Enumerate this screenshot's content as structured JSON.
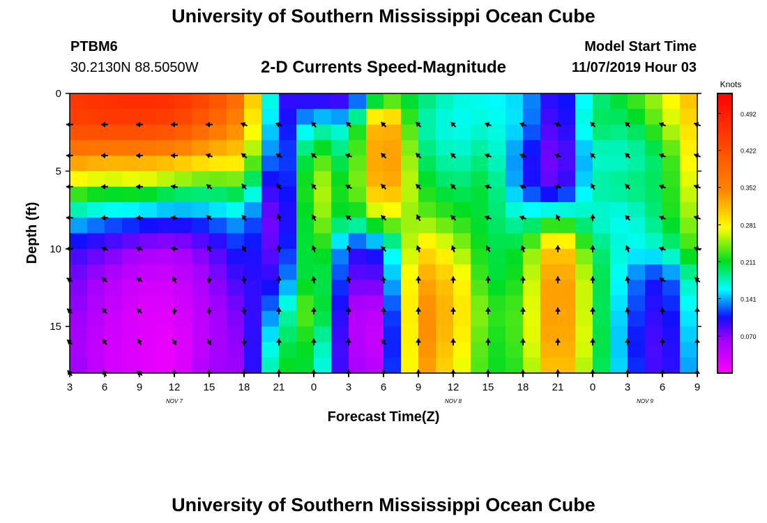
{
  "title": "University of Southern Mississippi Ocean Cube",
  "footer_title": "University of Southern Mississippi Ocean Cube",
  "station": {
    "id": "PTBM6",
    "coords": "30.2130N 88.5050W"
  },
  "chart_title": "2-D Currents Speed-Magnitude",
  "model": {
    "label": "Model Start Time",
    "value": "11/07/2019 Hour 03"
  },
  "chart_data": {
    "type": "heatmap",
    "title": "2-D Currents Speed-Magnitude",
    "xlabel": "Forecast Time(Z)",
    "ylabel": "Depth (ft)",
    "x_hours": [
      3,
      6,
      9,
      12,
      15,
      18,
      21,
      24,
      27,
      30,
      33,
      36,
      39,
      42,
      45,
      48,
      51,
      54,
      57
    ],
    "x_tick_labels": [
      "3",
      "6",
      "9",
      "12",
      "15",
      "18",
      "21",
      "0",
      "3",
      "6",
      "9",
      "12",
      "15",
      "18",
      "21",
      "0",
      "3",
      "6",
      "9"
    ],
    "date_labels": [
      {
        "label": "NOV  7",
        "hour": 12
      },
      {
        "label": "NOV  8",
        "hour": 36
      },
      {
        "label": "NOV  9",
        "hour": 52.5
      }
    ],
    "xlim": [
      3,
      57
    ],
    "ylim": [
      18,
      0
    ],
    "y_ticks": [
      0,
      5,
      10,
      15
    ],
    "colorbar": {
      "unit": "Knots",
      "ticks": [
        "0.492",
        "0.422",
        "0.352",
        "0.281",
        "0.211",
        "0.141",
        "0.070"
      ],
      "tick_values": [
        0.492,
        0.422,
        0.352,
        0.281,
        0.211,
        0.141,
        0.07
      ],
      "range": [
        0.0,
        0.53
      ]
    },
    "depths": [
      0,
      2,
      4,
      6,
      8,
      10,
      12,
      14,
      16,
      18
    ],
    "speed_grid": [
      [
        0.46,
        0.47,
        0.48,
        0.47,
        0.44,
        0.38,
        0.1,
        0.08,
        0.07,
        0.2,
        0.2,
        0.17,
        0.16,
        0.15,
        0.09,
        0.18,
        0.22,
        0.26,
        0.33
      ],
      [
        0.44,
        0.45,
        0.45,
        0.44,
        0.4,
        0.34,
        0.09,
        0.17,
        0.16,
        0.37,
        0.18,
        0.16,
        0.17,
        0.15,
        0.07,
        0.2,
        0.19,
        0.24,
        0.31
      ],
      [
        0.36,
        0.35,
        0.35,
        0.34,
        0.31,
        0.3,
        0.08,
        0.24,
        0.18,
        0.38,
        0.2,
        0.17,
        0.19,
        0.12,
        0.06,
        0.17,
        0.17,
        0.2,
        0.3
      ],
      [
        0.25,
        0.23,
        0.24,
        0.22,
        0.21,
        0.22,
        0.06,
        0.27,
        0.2,
        0.36,
        0.22,
        0.19,
        0.21,
        0.12,
        0.07,
        0.18,
        0.19,
        0.2,
        0.28
      ],
      [
        0.16,
        0.14,
        0.13,
        0.12,
        0.13,
        0.15,
        0.05,
        0.26,
        0.19,
        0.26,
        0.24,
        0.22,
        0.2,
        0.17,
        0.2,
        0.17,
        0.16,
        0.2,
        0.26
      ],
      [
        0.1,
        0.08,
        0.06,
        0.05,
        0.08,
        0.12,
        0.07,
        0.25,
        0.1,
        0.12,
        0.3,
        0.26,
        0.2,
        0.21,
        0.34,
        0.2,
        0.16,
        0.17,
        0.24
      ],
      [
        0.08,
        0.05,
        0.03,
        0.03,
        0.06,
        0.1,
        0.1,
        0.24,
        0.08,
        0.08,
        0.34,
        0.3,
        0.2,
        0.22,
        0.37,
        0.22,
        0.14,
        0.1,
        0.2
      ],
      [
        0.07,
        0.04,
        0.02,
        0.02,
        0.05,
        0.08,
        0.15,
        0.26,
        0.05,
        0.04,
        0.36,
        0.31,
        0.22,
        0.23,
        0.37,
        0.22,
        0.13,
        0.09,
        0.18
      ],
      [
        0.06,
        0.03,
        0.02,
        0.01,
        0.05,
        0.07,
        0.19,
        0.22,
        0.05,
        0.03,
        0.36,
        0.3,
        0.21,
        0.23,
        0.36,
        0.23,
        0.12,
        0.08,
        0.17
      ],
      [
        0.07,
        0.03,
        0.02,
        0.01,
        0.06,
        0.06,
        0.22,
        0.2,
        0.06,
        0.04,
        0.35,
        0.28,
        0.21,
        0.22,
        0.34,
        0.22,
        0.13,
        0.08,
        0.16
      ]
    ],
    "vector_depths": [
      2,
      4,
      6,
      8,
      10,
      12,
      14,
      16,
      18
    ],
    "vector_angles_deg": [
      [
        180,
        180,
        180,
        180,
        180,
        160,
        160,
        130,
        135,
        135,
        135,
        135,
        160,
        160,
        160,
        135,
        135,
        160,
        160
      ],
      [
        180,
        180,
        180,
        180,
        160,
        140,
        150,
        140,
        160,
        135,
        135,
        135,
        160,
        160,
        160,
        135,
        135,
        160,
        160
      ],
      [
        180,
        180,
        180,
        170,
        140,
        130,
        130,
        130,
        150,
        135,
        135,
        135,
        160,
        160,
        160,
        120,
        135,
        160,
        160
      ],
      [
        180,
        180,
        180,
        170,
        140,
        130,
        110,
        120,
        140,
        135,
        120,
        135,
        160,
        160,
        120,
        90,
        135,
        160,
        160
      ],
      [
        180,
        160,
        160,
        170,
        120,
        120,
        100,
        110,
        110,
        135,
        110,
        110,
        120,
        110,
        90,
        90,
        110,
        160,
        160
      ],
      [
        150,
        140,
        150,
        120,
        270,
        280,
        90,
        100,
        110,
        100,
        90,
        90,
        90,
        90,
        90,
        90,
        100,
        150,
        140
      ],
      [
        140,
        130,
        140,
        270,
        270,
        280,
        90,
        90,
        90,
        90,
        90,
        90,
        90,
        90,
        90,
        90,
        100,
        90,
        90
      ],
      [
        140,
        130,
        120,
        300,
        300,
        270,
        90,
        90,
        90,
        135,
        90,
        90,
        90,
        90,
        90,
        90,
        90,
        90,
        90
      ],
      [
        130,
        120,
        140,
        90,
        90,
        90,
        90,
        90,
        90,
        90,
        90,
        90,
        90,
        90,
        90,
        90,
        90,
        90,
        90
      ]
    ]
  }
}
